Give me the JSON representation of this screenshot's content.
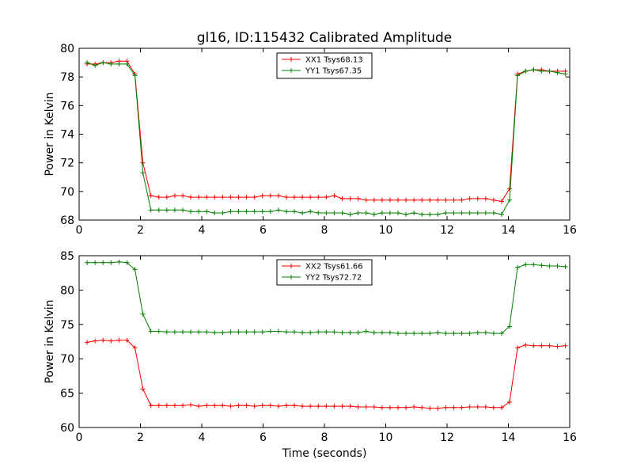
{
  "figure": {
    "title": "gl16, ID:115432 Calibrated Amplitude",
    "xlabel": "Time (seconds)"
  },
  "chart_data": [
    {
      "type": "line",
      "title": "gl16, ID:115432 Calibrated Amplitude",
      "xlabel": "",
      "ylabel": "Power in Kelvin",
      "xlim": [
        0,
        16
      ],
      "ylim": [
        68,
        80
      ],
      "xticks": [
        0,
        2,
        4,
        6,
        8,
        10,
        12,
        14,
        16
      ],
      "yticks": [
        68,
        70,
        72,
        74,
        76,
        78,
        80
      ],
      "grid": false,
      "legend_position": "top-center",
      "x": [
        0.26,
        0.52,
        0.78,
        1.04,
        1.3,
        1.56,
        1.82,
        2.08,
        2.34,
        2.6,
        2.86,
        3.12,
        3.38,
        3.64,
        3.9,
        4.16,
        4.42,
        4.68,
        4.94,
        5.2,
        5.46,
        5.72,
        5.98,
        6.24,
        6.5,
        6.76,
        7.02,
        7.28,
        7.54,
        7.8,
        8.06,
        8.32,
        8.58,
        8.84,
        9.1,
        9.36,
        9.62,
        9.88,
        10.14,
        10.4,
        10.66,
        10.92,
        11.18,
        11.44,
        11.7,
        11.96,
        12.22,
        12.48,
        12.74,
        13.0,
        13.26,
        13.52,
        13.78,
        14.04,
        14.3,
        14.56,
        14.82,
        15.08,
        15.34,
        15.6,
        15.86
      ],
      "series": [
        {
          "name": "XX1 Tsys68.13",
          "color": "#ff0000",
          "values": [
            78.9,
            78.9,
            79.0,
            79.0,
            79.1,
            79.1,
            78.2,
            72.0,
            69.7,
            69.6,
            69.6,
            69.7,
            69.7,
            69.6,
            69.6,
            69.6,
            69.6,
            69.6,
            69.6,
            69.6,
            69.6,
            69.6,
            69.7,
            69.7,
            69.7,
            69.6,
            69.6,
            69.6,
            69.6,
            69.6,
            69.6,
            69.7,
            69.5,
            69.5,
            69.5,
            69.4,
            69.4,
            69.4,
            69.4,
            69.4,
            69.4,
            69.4,
            69.4,
            69.4,
            69.4,
            69.4,
            69.4,
            69.4,
            69.5,
            69.5,
            69.5,
            69.4,
            69.3,
            70.2,
            78.2,
            78.4,
            78.5,
            78.5,
            78.4,
            78.4,
            78.4
          ]
        },
        {
          "name": "YY1 Tsys67.35",
          "color": "#008000",
          "values": [
            79.0,
            78.8,
            79.0,
            78.9,
            78.9,
            78.9,
            78.1,
            71.3,
            68.7,
            68.7,
            68.7,
            68.7,
            68.7,
            68.6,
            68.6,
            68.6,
            68.5,
            68.5,
            68.6,
            68.6,
            68.6,
            68.6,
            68.6,
            68.6,
            68.7,
            68.6,
            68.6,
            68.5,
            68.6,
            68.5,
            68.5,
            68.5,
            68.5,
            68.4,
            68.5,
            68.5,
            68.4,
            68.5,
            68.5,
            68.5,
            68.4,
            68.5,
            68.4,
            68.4,
            68.4,
            68.5,
            68.5,
            68.5,
            68.5,
            68.5,
            68.5,
            68.5,
            68.4,
            69.4,
            78.1,
            78.4,
            78.5,
            78.4,
            78.4,
            78.3,
            78.2
          ]
        }
      ]
    },
    {
      "type": "line",
      "title": "",
      "xlabel": "Time (seconds)",
      "ylabel": "Power in Kelvin",
      "xlim": [
        0,
        16
      ],
      "ylim": [
        60,
        85
      ],
      "xticks": [
        0,
        2,
        4,
        6,
        8,
        10,
        12,
        14,
        16
      ],
      "yticks": [
        60,
        65,
        70,
        75,
        80,
        85
      ],
      "grid": false,
      "legend_position": "top-center",
      "x": [
        0.26,
        0.52,
        0.78,
        1.04,
        1.3,
        1.56,
        1.82,
        2.08,
        2.34,
        2.6,
        2.86,
        3.12,
        3.38,
        3.64,
        3.9,
        4.16,
        4.42,
        4.68,
        4.94,
        5.2,
        5.46,
        5.72,
        5.98,
        6.24,
        6.5,
        6.76,
        7.02,
        7.28,
        7.54,
        7.8,
        8.06,
        8.32,
        8.58,
        8.84,
        9.1,
        9.36,
        9.62,
        9.88,
        10.14,
        10.4,
        10.66,
        10.92,
        11.18,
        11.44,
        11.7,
        11.96,
        12.22,
        12.48,
        12.74,
        13.0,
        13.26,
        13.52,
        13.78,
        14.04,
        14.3,
        14.56,
        14.82,
        15.08,
        15.34,
        15.6,
        15.86
      ],
      "series": [
        {
          "name": "XX2 Tsys61.66",
          "color": "#ff0000",
          "values": [
            72.4,
            72.6,
            72.7,
            72.6,
            72.7,
            72.7,
            71.6,
            65.6,
            63.2,
            63.2,
            63.2,
            63.2,
            63.2,
            63.3,
            63.1,
            63.2,
            63.2,
            63.2,
            63.1,
            63.2,
            63.2,
            63.1,
            63.2,
            63.2,
            63.1,
            63.2,
            63.2,
            63.1,
            63.1,
            63.1,
            63.1,
            63.1,
            63.1,
            63.1,
            63.0,
            63.0,
            63.0,
            62.9,
            62.9,
            62.9,
            62.9,
            63.0,
            62.9,
            62.8,
            62.8,
            62.9,
            62.9,
            62.9,
            63.0,
            63.0,
            63.0,
            62.9,
            62.9,
            63.7,
            71.6,
            72.0,
            71.9,
            71.9,
            71.9,
            71.8,
            71.9
          ]
        },
        {
          "name": "YY2 Tsys72.72",
          "color": "#008000",
          "values": [
            84.0,
            84.0,
            84.0,
            84.0,
            84.1,
            84.0,
            83.0,
            76.5,
            74.0,
            74.0,
            73.9,
            73.9,
            73.9,
            73.9,
            73.9,
            73.9,
            73.8,
            73.8,
            73.9,
            73.9,
            73.9,
            73.9,
            73.9,
            74.0,
            74.0,
            73.9,
            73.9,
            73.8,
            73.8,
            73.9,
            73.9,
            73.9,
            73.8,
            73.8,
            73.8,
            74.0,
            73.8,
            73.8,
            73.8,
            73.7,
            73.7,
            73.7,
            73.7,
            73.7,
            73.8,
            73.7,
            73.7,
            73.7,
            73.7,
            73.8,
            73.8,
            73.7,
            73.7,
            74.7,
            83.3,
            83.7,
            83.7,
            83.6,
            83.5,
            83.5,
            83.4
          ]
        }
      ]
    }
  ]
}
